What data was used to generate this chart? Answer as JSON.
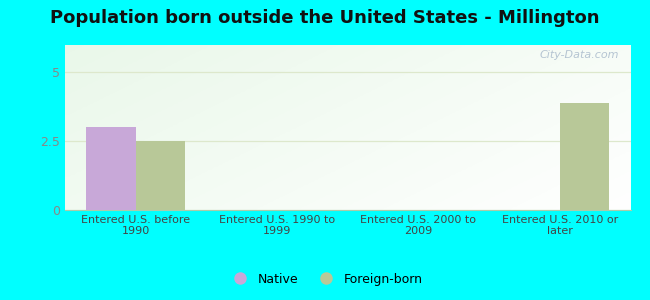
{
  "title": "Population born outside the United States - Millington",
  "categories": [
    "Entered U.S. before\n1990",
    "Entered U.S. 1990 to\n1999",
    "Entered U.S. 2000 to\n2009",
    "Entered U.S. 2010 or\nlater"
  ],
  "native_values": [
    3.0,
    0,
    0,
    0
  ],
  "foreign_values": [
    2.5,
    0,
    0,
    3.9
  ],
  "native_color": "#c8a8d8",
  "foreign_color": "#b8c898",
  "bg_top_left": "#c8e8c0",
  "bg_bottom_right": "#f8fff8",
  "outer_background": "#00ffff",
  "ylim": [
    0,
    6
  ],
  "yticks": [
    0,
    2.5,
    5
  ],
  "bar_width": 0.35,
  "watermark": "City-Data.com",
  "legend_native": "Native",
  "legend_foreign": "Foreign-born",
  "title_fontsize": 13,
  "gridline_color": "#dde8cc",
  "tick_color": "#888888",
  "xlabel_color": "#444444"
}
